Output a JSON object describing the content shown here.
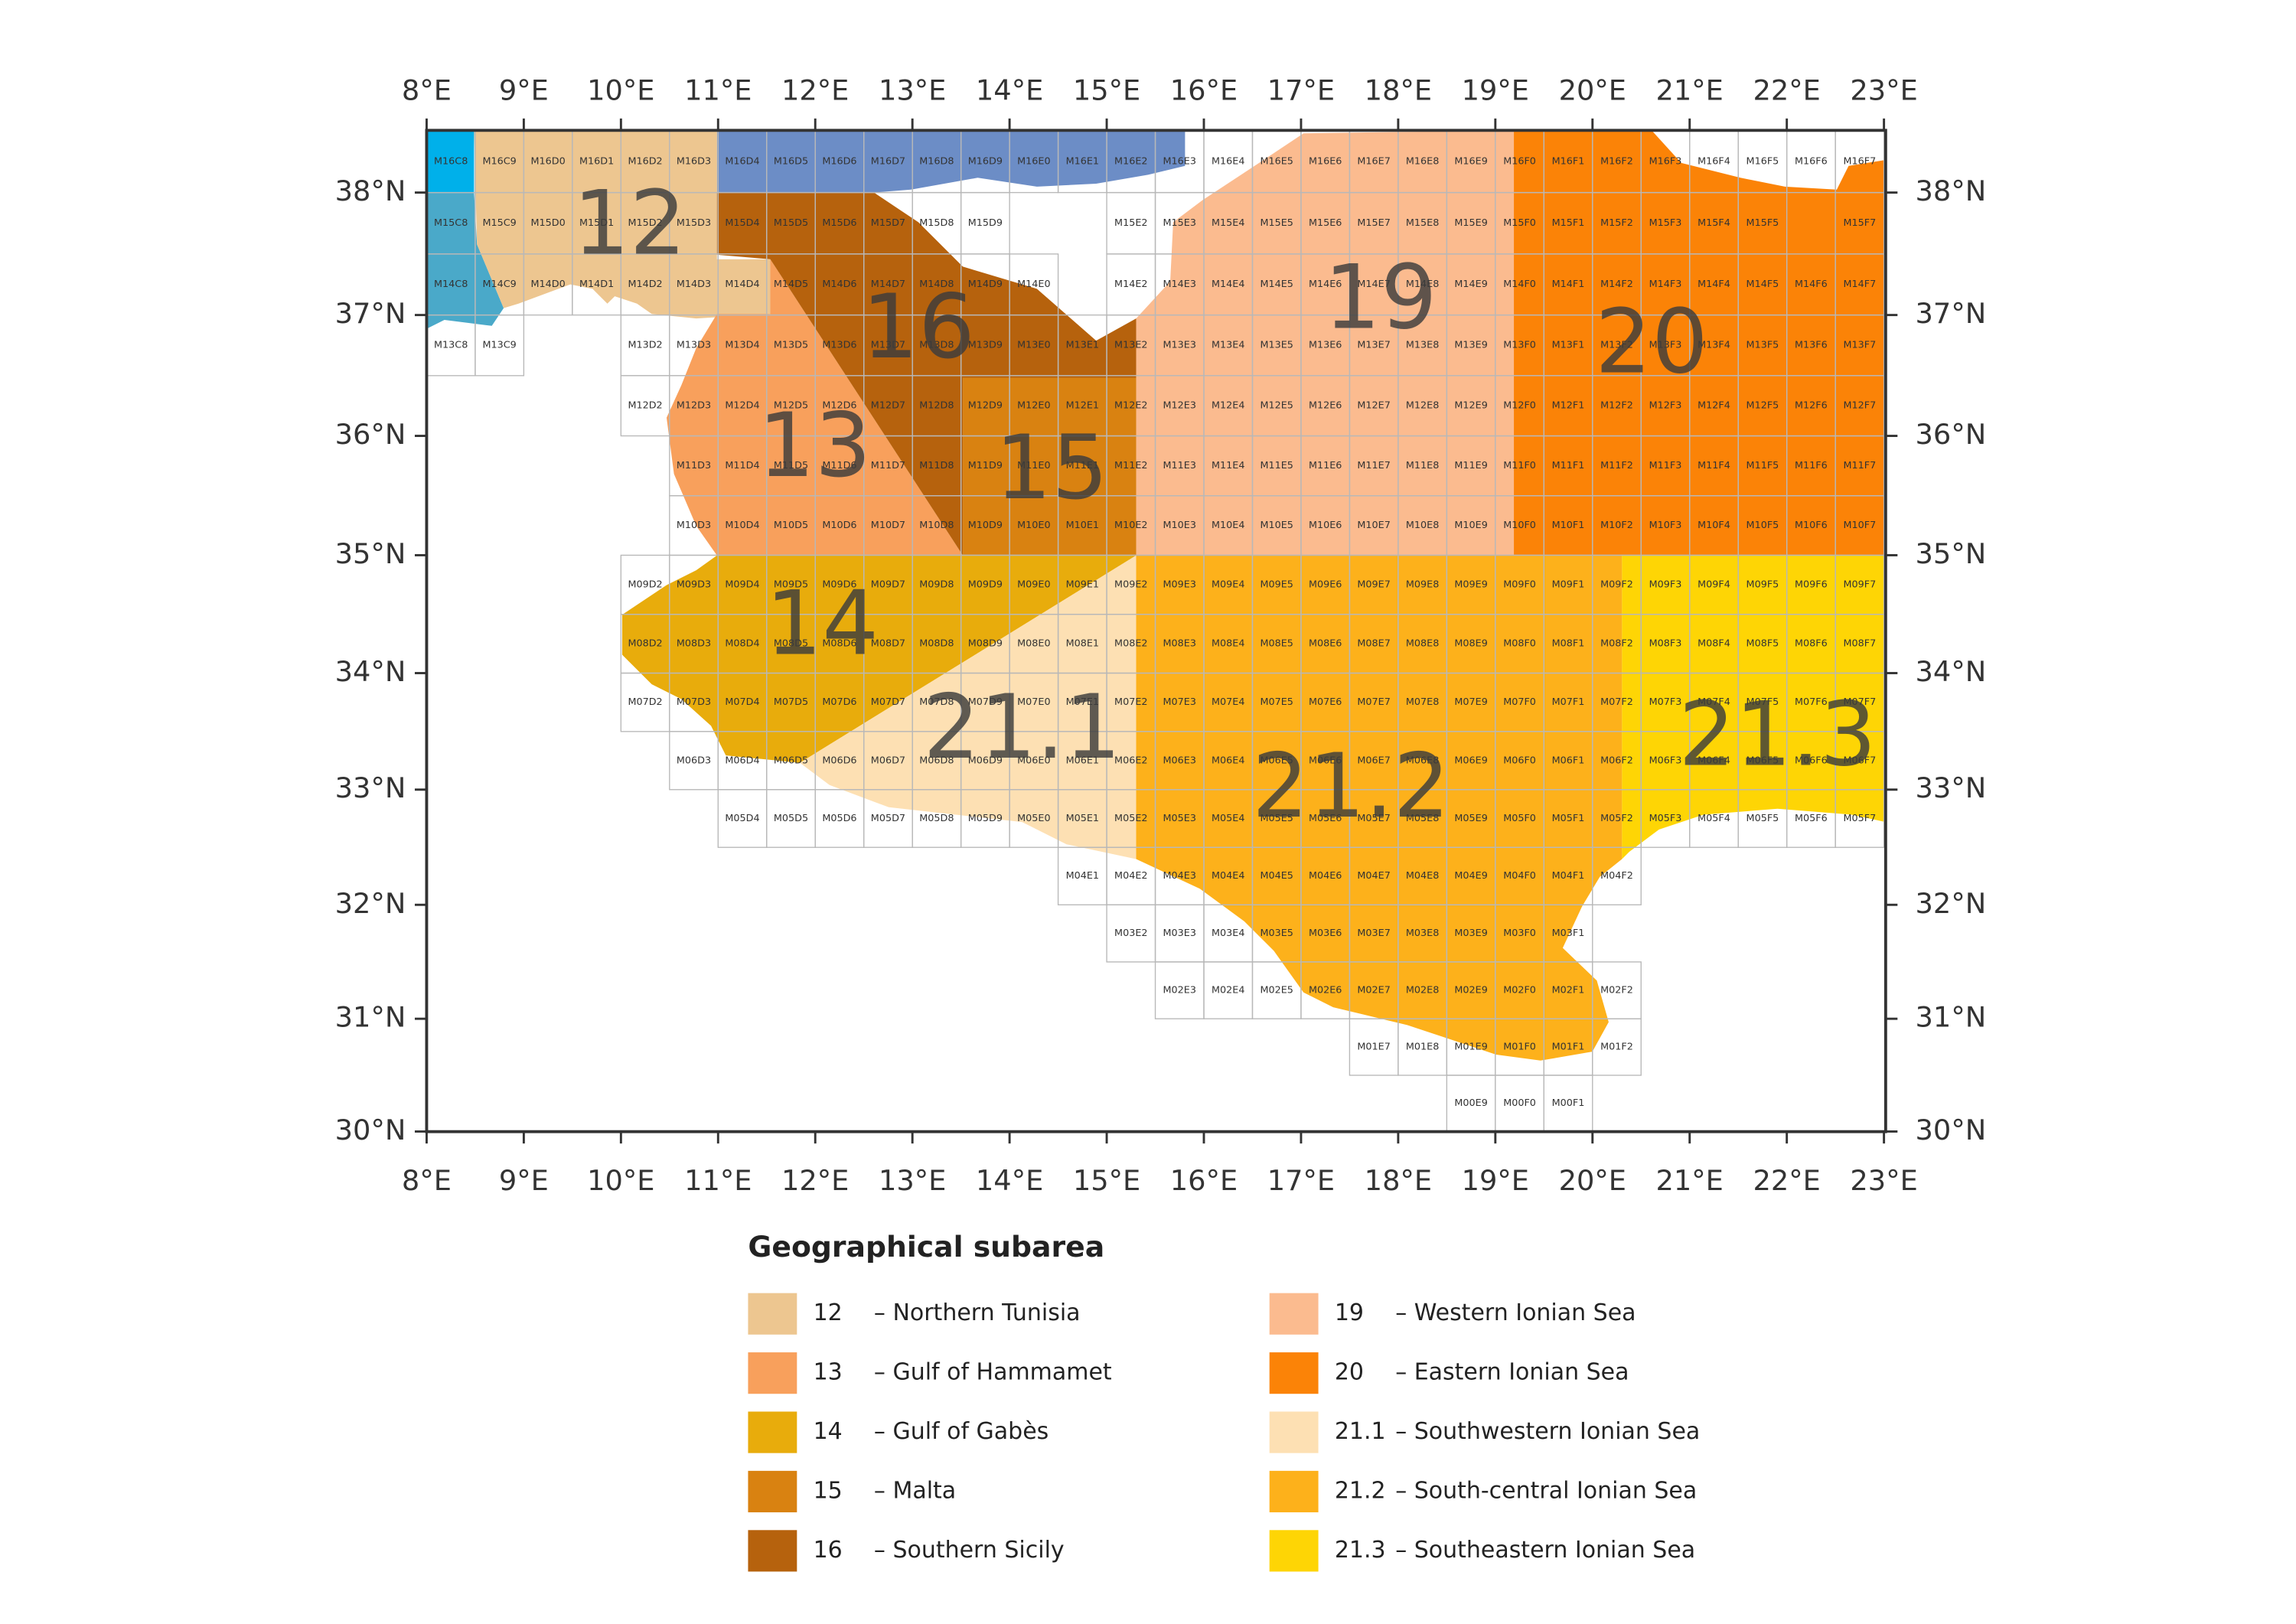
{
  "map": {
    "lon_ticks": [
      {
        "value": 8,
        "label": "8°E"
      },
      {
        "value": 9,
        "label": "9°E"
      },
      {
        "value": 10,
        "label": "10°E"
      },
      {
        "value": 11,
        "label": "11°E"
      },
      {
        "value": 12,
        "label": "12°E"
      },
      {
        "value": 13,
        "label": "13°E"
      },
      {
        "value": 14,
        "label": "14°E"
      },
      {
        "value": 15,
        "label": "15°E"
      },
      {
        "value": 16,
        "label": "16°E"
      },
      {
        "value": 17,
        "label": "17°E"
      },
      {
        "value": 18,
        "label": "18°E"
      },
      {
        "value": 19,
        "label": "19°E"
      },
      {
        "value": 20,
        "label": "20°E"
      },
      {
        "value": 21,
        "label": "21°E"
      },
      {
        "value": 22,
        "label": "22°E"
      },
      {
        "value": 23,
        "label": "23°E"
      }
    ],
    "lat_ticks": [
      {
        "value": 38,
        "label": "38°N"
      },
      {
        "value": 37,
        "label": "37°N"
      },
      {
        "value": 36,
        "label": "36°N"
      },
      {
        "value": 35,
        "label": "35°N"
      },
      {
        "value": 34,
        "label": "34°N"
      },
      {
        "value": 33,
        "label": "33°N"
      },
      {
        "value": 32,
        "label": "32°N"
      },
      {
        "value": 31,
        "label": "31°N"
      },
      {
        "value": 30,
        "label": "30°N"
      }
    ],
    "grid": [
      [
        "M16C8",
        "M16C9",
        "M16D0",
        "M16D1",
        "M16D2",
        "M16D3",
        "M16D4",
        "M16D5",
        "M16D6",
        "M16D7",
        "M16D8",
        "M16D9",
        "M16E0",
        "M16E1",
        "M16E2",
        "M16E3",
        "M16E4",
        "M16E5",
        "M16E6",
        "M16E7",
        "M16E8",
        "M16E9",
        "M16F0",
        "M16F1",
        "M16F2",
        "M16F3",
        "M16F4",
        "M16F5",
        "M16F6",
        "M16F7"
      ],
      [
        "M15C8",
        "M15C9",
        "M15D0",
        "M15D1",
        "M15D2",
        "M15D3",
        "M15D4",
        "M15D5",
        "M15D6",
        "M15D7",
        "M15D8",
        "M15D9",
        "M15E2",
        "M15E3",
        "M15E4",
        "M15E5",
        "M15E6",
        "M15E7",
        "M15E8",
        "M15E9",
        "M15F0",
        "M15F1",
        "M15F2",
        "M15F3",
        "M15F4",
        "M15F5",
        "M15F7"
      ],
      [
        "M14C8",
        "M14C9",
        "M14D0",
        "M14D1",
        "M14D2",
        "M14D3",
        "M14D4",
        "M14D5",
        "M14D6",
        "M14D7",
        "M14D8",
        "M14D9",
        "M14E0",
        "M14E2",
        "M14E3",
        "M14E4",
        "M14E5",
        "M14E6",
        "M14E7",
        "M14E8",
        "M14E9",
        "M14F0",
        "M14F1",
        "M14F2",
        "M14F3",
        "M14F4",
        "M14F5",
        "M14F6",
        "M14F7"
      ],
      [
        "M13C8",
        "M13C9",
        "M13D2",
        "M13D3",
        "M13D4",
        "M13D5",
        "M13D6",
        "M13D7",
        "M13D8",
        "M13D9",
        "M13E0",
        "M13E1",
        "M13E2",
        "M13E3",
        "M13E4",
        "M13E5",
        "M13E6",
        "M13E7",
        "M13E8",
        "M13E9",
        "M13F0",
        "M13F1",
        "M13F2",
        "M13F3",
        "M13F4",
        "M13F5",
        "M13F6",
        "M13F7"
      ],
      [
        "M12D2",
        "M12D3",
        "M12D4",
        "M12D5",
        "M12D6",
        "M12D7",
        "M12D8",
        "M12D9",
        "M12E0",
        "M12E1",
        "M12E2",
        "M12E3",
        "M12E4",
        "M12E5",
        "M12E6",
        "M12E7",
        "M12E8",
        "M12E9",
        "M12F0",
        "M12F1",
        "M12F2",
        "M12F3",
        "M12F4",
        "M12F5",
        "M12F6",
        "M12F7"
      ],
      [
        "M11D3",
        "M11D4",
        "M11D5",
        "M11D6",
        "M11D7",
        "M11D8",
        "M11D9",
        "M11E0",
        "M11E1",
        "M11E2",
        "M11E3",
        "M11E4",
        "M11E5",
        "M11E6",
        "M11E7",
        "M11E8",
        "M11E9",
        "M11F0",
        "M11F1",
        "M11F2",
        "M11F3",
        "M11F4",
        "M11F5",
        "M11F6",
        "M11F7"
      ],
      [
        "M10D3",
        "M10D4",
        "M10D5",
        "M10D6",
        "M10D7",
        "M10D8",
        "M10D9",
        "M10E0",
        "M10E1",
        "M10E2",
        "M10E3",
        "M10E4",
        "M10E5",
        "M10E6",
        "M10E7",
        "M10E8",
        "M10E9",
        "M10F0",
        "M10F1",
        "M10F2",
        "M10F3",
        "M10F4",
        "M10F5",
        "M10F6",
        "M10F7"
      ],
      [
        "M09D2",
        "M09D3",
        "M09D4",
        "M09D5",
        "M09D6",
        "M09D7",
        "M09D8",
        "M09D9",
        "M09E0",
        "M09E1",
        "M09E2",
        "M09E3",
        "M09E4",
        "M09E5",
        "M09E6",
        "M09E7",
        "M09E8",
        "M09E9",
        "M09F0",
        "M09F1",
        "M09F2",
        "M09F3",
        "M09F4",
        "M09F5",
        "M09F6",
        "M09F7"
      ],
      [
        "M08D2",
        "M08D3",
        "M08D4",
        "M08D5",
        "M08D6",
        "M08D7",
        "M08D8",
        "M08D9",
        "M08E0",
        "M08E1",
        "M08E2",
        "M08E3",
        "M08E4",
        "M08E5",
        "M08E6",
        "M08E7",
        "M08E8",
        "M08E9",
        "M08F0",
        "M08F1",
        "M08F2",
        "M08F3",
        "M08F4",
        "M08F5",
        "M08F6",
        "M08F7"
      ],
      [
        "M07D2",
        "M07D3",
        "M07D4",
        "M07D5",
        "M07D6",
        "M07D7",
        "M07D8",
        "M07D9",
        "M07E0",
        "M07E1",
        "M07E2",
        "M07E3",
        "M07E4",
        "M07E5",
        "M07E6",
        "M07E7",
        "M07E8",
        "M07E9",
        "M07F0",
        "M07F1",
        "M07F2",
        "M07F3",
        "M07F4",
        "M07F5",
        "M07F6",
        "M07F7"
      ],
      [
        "M06D3",
        "M06D4",
        "M06D5",
        "M06D6",
        "M06D7",
        "M06D8",
        "M06D9",
        "M06E0",
        "M06E1",
        "M06E2",
        "M06E3",
        "M06E4",
        "M06E5",
        "M06E6",
        "M06E7",
        "M06E8",
        "M06E9",
        "M06F0",
        "M06F1",
        "M06F2",
        "M06F3",
        "M06F4",
        "M06F5",
        "M06F6",
        "M06F7"
      ],
      [
        "M05D4",
        "M05D5",
        "M05D6",
        "M05D7",
        "M05D8",
        "M05D9",
        "M05E0",
        "M05E1",
        "M05E2",
        "M05E3",
        "M05E4",
        "M05E5",
        "M05E6",
        "M05E7",
        "M05E8",
        "M05E9",
        "M05F0",
        "M05F1",
        "M05F2",
        "M05F3",
        "M05F4",
        "M05F5",
        "M05F6",
        "M05F7"
      ],
      [
        "M04E1",
        "M04E2",
        "M04E3",
        "M04E4",
        "M04E5",
        "M04E6",
        "M04E7",
        "M04E8",
        "M04E9",
        "M04F0",
        "M04F1",
        "M04F2"
      ],
      [
        "M03E2",
        "M03E3",
        "M03E4",
        "M03E5",
        "M03E6",
        "M03E7",
        "M03E8",
        "M03E9",
        "M03F0",
        "M03F1"
      ],
      [
        "M02E3",
        "M02E4",
        "M02E5",
        "M02E6",
        "M02E7",
        "M02E8",
        "M02E9",
        "M02F0",
        "M02F1",
        "M02F2"
      ],
      [
        "M01E7",
        "M01E8",
        "M01E9",
        "M01F0",
        "M01F1",
        "M01F2"
      ],
      [
        "M00E9",
        "M00F0",
        "M00F1"
      ]
    ]
  },
  "legend": {
    "title": "Geographical subarea",
    "areas": [
      {
        "code": "12",
        "label": "– Northern Tunisia",
        "color": "#edc690"
      },
      {
        "code": "13",
        "label": "– Gulf of Hammamet",
        "color": "#f8a05c"
      },
      {
        "code": "14",
        "label": "– Gulf of Gabès",
        "color": "#e8ac0c"
      },
      {
        "code": "15",
        "label": "– Malta",
        "color": "#d98211"
      },
      {
        "code": "16",
        "label": "– Southern Sicily",
        "color": "#b6620d"
      },
      {
        "code": "19",
        "label": "– Western Ionian Sea",
        "color": "#fbbb8f"
      },
      {
        "code": "20",
        "label": "– Eastern Ionian Sea",
        "color": "#fb8307"
      },
      {
        "code": "21.1",
        "label": "– Southwestern Ionian Sea",
        "color": "#fde0b3"
      },
      {
        "code": "21.2",
        "label": "– South-central Ionian Sea",
        "color": "#fdb11b"
      },
      {
        "code": "21.3",
        "label": "– Southeastern Ionian Sea",
        "color": "#fed505"
      }
    ]
  }
}
